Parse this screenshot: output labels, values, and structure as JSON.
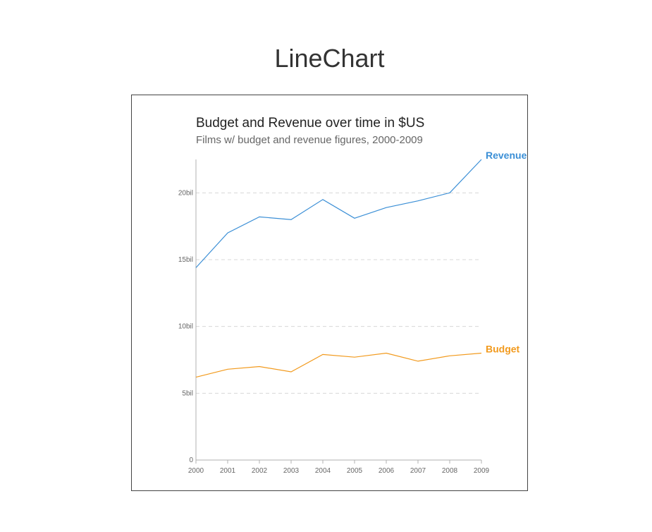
{
  "page": {
    "heading": "LineChart"
  },
  "chart_data": {
    "type": "line",
    "title": "Budget and Revenue over time in $US",
    "subtitle": "Films w/ budget and revenue figures, 2000-2009",
    "xlabel": "",
    "ylabel": "",
    "x": [
      "2000",
      "2001",
      "2002",
      "2003",
      "2004",
      "2005",
      "2006",
      "2007",
      "2008",
      "2009"
    ],
    "ylim": [
      0,
      22.5
    ],
    "y_ticks": [
      0,
      5,
      10,
      15,
      20
    ],
    "y_tick_labels": [
      "0",
      "5bil",
      "10bil",
      "15bil",
      "20bil"
    ],
    "grid": true,
    "legend": "series labels at line ends",
    "series": [
      {
        "name": "Revenue",
        "color": "#3b8fd6",
        "values": [
          14.4,
          17.0,
          18.2,
          18.0,
          19.5,
          18.1,
          18.9,
          19.4,
          20.0,
          22.5
        ]
      },
      {
        "name": "Budget",
        "color": "#f29a1d",
        "values": [
          6.2,
          6.8,
          7.0,
          6.6,
          7.9,
          7.7,
          8.0,
          7.4,
          7.8,
          8.0
        ]
      }
    ]
  }
}
